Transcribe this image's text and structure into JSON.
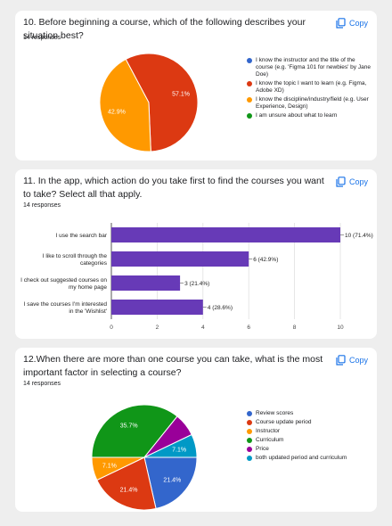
{
  "copy_label": "Copy",
  "questions": [
    {
      "title": "10. Before beginning a course, which of the following describes your situation best?",
      "responses": "14 responses"
    },
    {
      "title": "11. In the app, which action do you take first to find the courses you want to take? Select all that apply.",
      "responses": "14 responses"
    },
    {
      "title": "12.When there are more than one course you can take, what is the most important factor in selecting a course?",
      "responses": "14 responses"
    }
  ],
  "chart_data": [
    {
      "type": "pie",
      "labels": [
        "I know the instructor and the title of the course (e.g. 'Figma 101 for newbies' by Jane Doe)",
        "I know the topic I want to learn (e.g. Figma, Adobe XD)",
        "I know the discipline/industry/field (e.g. User Experience, Design)",
        "I am unsure about what to learn"
      ],
      "values": [
        0,
        57.1,
        42.9,
        0
      ],
      "value_labels": [
        "",
        "57.1%",
        "42.9%",
        ""
      ],
      "colors": [
        "#3366cc",
        "#dc3912",
        "#ff9900",
        "#109618"
      ],
      "legend": "right"
    },
    {
      "type": "bar",
      "orientation": "horizontal",
      "categories": [
        "I use the search bar",
        "I like to scroll through the categories",
        "I check out suggested courses on my home page",
        "I save the courses I'm interested in the 'Wishlist'"
      ],
      "values": [
        10,
        6,
        3,
        4
      ],
      "value_labels": [
        "10 (71.4%)",
        "6 (42.9%)",
        "3 (21.4%)",
        "4 (28.6%)"
      ],
      "xlim": [
        0,
        10
      ],
      "xticks": [
        "0",
        "2",
        "4",
        "6",
        "8",
        "10"
      ],
      "color": "#673ab7",
      "grid": true
    },
    {
      "type": "pie",
      "labels": [
        "Review scores",
        "Course update period",
        "Instructor",
        "Curriculum",
        "Price",
        "both updated period and curriculum"
      ],
      "values": [
        21.4,
        21.4,
        7.1,
        35.7,
        7.1,
        7.1
      ],
      "value_labels": [
        "21.4%",
        "21.4%",
        "7.1%",
        "35.7%",
        "",
        "7.1%"
      ],
      "colors": [
        "#3366cc",
        "#dc3912",
        "#ff9900",
        "#109618",
        "#990099",
        "#0099c6"
      ],
      "legend": "right"
    }
  ]
}
